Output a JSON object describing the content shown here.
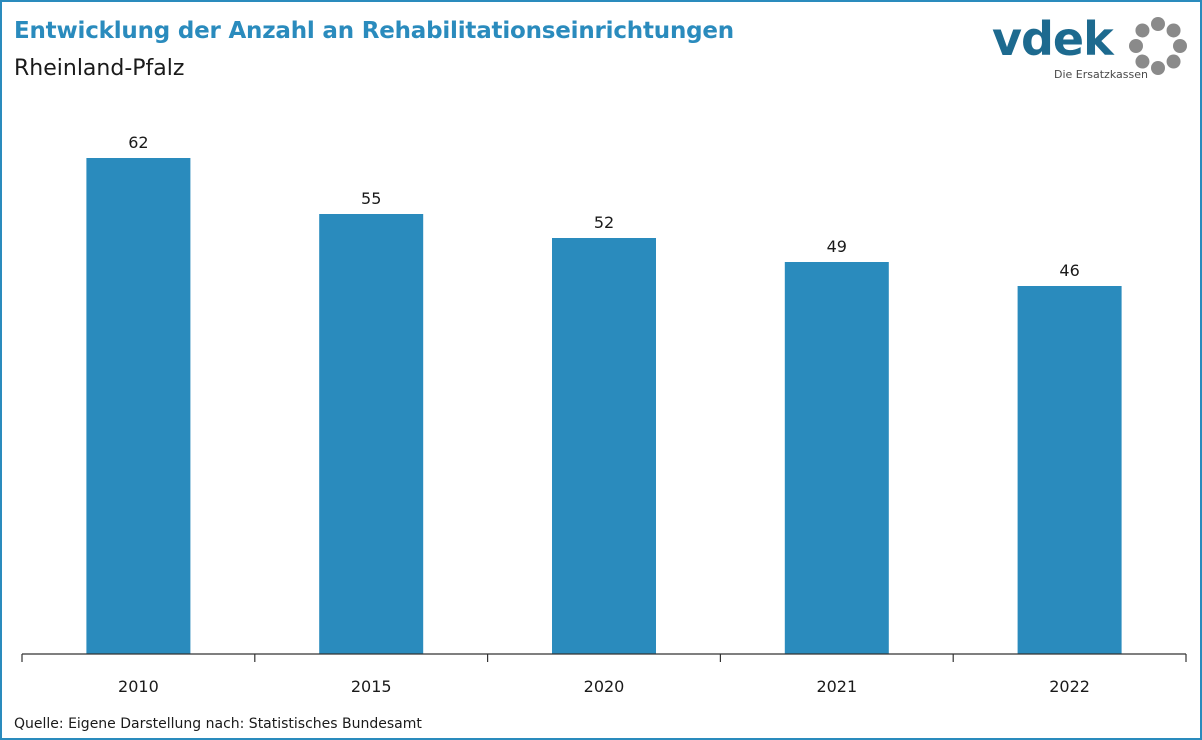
{
  "title": "Entwicklung der Anzahl an Rehabilitationseinrichtungen",
  "subtitle": "Rheinland-Pfalz",
  "logo": {
    "wordmark": "vdek",
    "tagline": "Die Ersatzkassen",
    "icon": "ring-of-dots-icon",
    "color": "#1d6a8f",
    "dot_color": "#8a8a8a"
  },
  "source": "Quelle: Eigene Darstellung nach: Statistisches Bundesamt",
  "colors": {
    "bar": "#2a8bbd",
    "accent": "#2a8bbd",
    "axis": "#333333"
  },
  "chart_data": {
    "type": "bar",
    "categories": [
      "2010",
      "2015",
      "2020",
      "2021",
      "2022"
    ],
    "values": [
      62,
      55,
      52,
      49,
      46
    ],
    "title": "Entwicklung der Anzahl an Rehabilitationseinrichtungen",
    "subtitle": "Rheinland-Pfalz",
    "xlabel": "",
    "ylabel": "",
    "ylim": [
      0,
      62
    ],
    "data_labels": true,
    "grid": false,
    "legend": "none"
  }
}
